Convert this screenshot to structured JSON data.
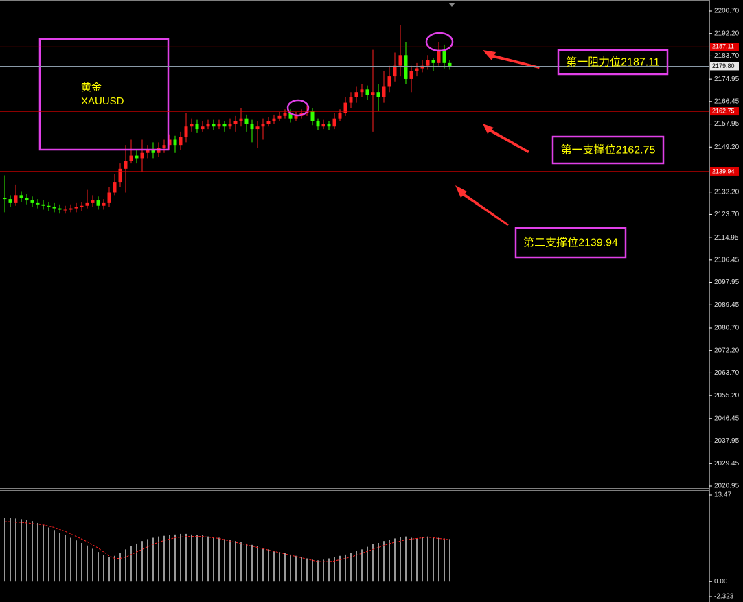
{
  "chart_data": {
    "type": "candlestick",
    "symbol": [
      "黄金",
      "XAUUSD"
    ],
    "open": [
      2130,
      2129.5,
      2128,
      2131,
      2130,
      2129,
      2128,
      2127.5,
      2127,
      2126.5,
      2126,
      2125.5,
      2125.5,
      2126,
      2126.5,
      2127,
      2128,
      2129,
      2127,
      2128,
      2132,
      2136,
      2141,
      2144,
      2146,
      2145,
      2147,
      2148,
      2147,
      2149,
      2150,
      2152,
      2150,
      2153,
      2157,
      2158,
      2156,
      2157,
      2158,
      2157,
      2158,
      2157,
      2158,
      2159,
      2160,
      2158,
      2156,
      2157,
      2158,
      2159,
      2160,
      2161,
      2162,
      2160,
      2161,
      2162,
      2163,
      2159,
      2157,
      2158,
      2157,
      2160,
      2162,
      2166,
      2168,
      2170,
      2171,
      2169,
      2170,
      2168,
      2172,
      2176,
      2180,
      2184,
      2175,
      2178,
      2179,
      2180,
      2182,
      2181,
      2186,
      2181
    ],
    "high": [
      2138.5,
      2131,
      2135,
      2132.5,
      2131.5,
      2130.5,
      2129.5,
      2129,
      2128.5,
      2128,
      2127.5,
      2127,
      2127.5,
      2128,
      2128.5,
      2133,
      2131,
      2130.5,
      2129.5,
      2134,
      2139,
      2143,
      2150,
      2152,
      2148,
      2152,
      2150,
      2151,
      2151,
      2152,
      2154,
      2153.5,
      2155,
      2162,
      2160,
      2159.5,
      2159,
      2159.5,
      2159.5,
      2159.5,
      2159,
      2160,
      2161,
      2164,
      2161.5,
      2159.5,
      2159,
      2160,
      2160.5,
      2161.5,
      2162.5,
      2163.5,
      2163.5,
      2162.5,
      2163.5,
      2165,
      2164,
      2160,
      2159.5,
      2159,
      2162,
      2163.5,
      2168,
      2170,
      2172,
      2173,
      2172.5,
      2186,
      2173,
      2178,
      2180,
      2185,
      2195.5,
      2189,
      2180,
      2181,
      2182,
      2184,
      2183,
      2189,
      2188,
      2182
    ],
    "low": [
      2124.5,
      2126.5,
      2127,
      2128.5,
      2127.5,
      2126.5,
      2126,
      2125.5,
      2125,
      2124.5,
      2124,
      2124,
      2124.5,
      2124.5,
      2125,
      2126,
      2126.5,
      2125.5,
      2125.5,
      2126.5,
      2131,
      2134,
      2132,
      2143,
      2143,
      2140,
      2145,
      2145,
      2145.5,
      2147,
      2148,
      2147,
      2148,
      2151,
      2155,
      2154.5,
      2155,
      2156,
      2155.5,
      2156,
      2155,
      2156,
      2155,
      2157,
      2155,
      2151,
      2149,
      2152,
      2157,
      2158,
      2159,
      2160,
      2158.5,
      2159,
      2160,
      2161,
      2157.5,
      2155.5,
      2156,
      2155.5,
      2156,
      2159,
      2161,
      2164,
      2166,
      2168,
      2167,
      2155,
      2163,
      2166,
      2170,
      2174,
      2176,
      2173,
      2170,
      2176,
      2177.5,
      2178.5,
      2178,
      2180,
      2179,
      2178.5
    ],
    "close": [
      2129.5,
      2128,
      2131,
      2130,
      2129,
      2128,
      2127.5,
      2127,
      2126.5,
      2126,
      2125.5,
      2125.5,
      2126,
      2126.5,
      2127,
      2128,
      2129,
      2127,
      2128,
      2132,
      2136,
      2141,
      2144,
      2146,
      2145,
      2147,
      2148,
      2147,
      2149,
      2150,
      2152,
      2150,
      2153,
      2157,
      2158,
      2156,
      2157,
      2158,
      2157,
      2158,
      2157,
      2158,
      2159,
      2160,
      2158,
      2156,
      2157,
      2158,
      2159,
      2160,
      2161,
      2162,
      2160,
      2161,
      2162,
      2163,
      2159,
      2157,
      2158,
      2157,
      2160,
      2162,
      2166,
      2168,
      2170,
      2171,
      2169,
      2170,
      2168,
      2172,
      2176,
      2180,
      2184,
      2175,
      2178,
      2179,
      2180,
      2182,
      2181,
      2186,
      2181,
      2179.8
    ],
    "up_color": "#ff2020",
    "down_color": "#33ff00",
    "ylim": [
      2020.95,
      2200.7
    ],
    "yticks": [
      {
        "value": 2200.7,
        "label": "2200.70"
      },
      {
        "value": 2192.2,
        "label": "2192.20"
      },
      {
        "value": 2183.7,
        "label": "2183.70"
      },
      {
        "value": 2174.95,
        "label": "2174.95"
      },
      {
        "value": 2166.45,
        "label": "2166.45"
      },
      {
        "value": 2157.95,
        "label": "2157.95"
      },
      {
        "value": 2149.2,
        "label": "2149.20"
      },
      {
        "value": 2132.2,
        "label": "2132.20"
      },
      {
        "value": 2123.7,
        "label": "2123.70"
      },
      {
        "value": 2114.95,
        "label": "2114.95"
      },
      {
        "value": 2106.45,
        "label": "2106.45"
      },
      {
        "value": 2097.95,
        "label": "2097.95"
      },
      {
        "value": 2089.45,
        "label": "2089.45"
      },
      {
        "value": 2080.7,
        "label": "2080.70"
      },
      {
        "value": 2072.2,
        "label": "2072.20"
      },
      {
        "value": 2063.7,
        "label": "2063.70"
      },
      {
        "value": 2055.2,
        "label": "2055.20"
      },
      {
        "value": 2046.45,
        "label": "2046.45"
      },
      {
        "value": 2037.95,
        "label": "2037.95"
      },
      {
        "value": 2029.45,
        "label": "2029.45"
      },
      {
        "value": 2020.95,
        "label": "2020.95"
      }
    ],
    "price_lines": [
      {
        "value": 2187.11,
        "label": "2187.11",
        "color": "#e00000"
      },
      {
        "value": 2179.8,
        "label": "2179.80",
        "color": "#8a9aa8"
      },
      {
        "value": 2162.75,
        "label": "2162.75",
        "color": "#e00000"
      },
      {
        "value": 2139.94,
        "label": "2139.94",
        "color": "#e00000"
      }
    ],
    "annotations": [
      "第一阻力位2187.11",
      "第一支撑位2162.75",
      "第二支撑位2139.94"
    ],
    "indicator": {
      "type": "macd",
      "histogram": [
        9.9,
        9.9,
        9.8,
        9.7,
        9.6,
        9.4,
        9.1,
        8.8,
        8.4,
        8.0,
        7.6,
        7.2,
        6.8,
        6.4,
        6.0,
        5.6,
        5.1,
        4.6,
        4.1,
        3.8,
        4.0,
        4.5,
        5.0,
        5.5,
        5.9,
        6.3,
        6.6,
        6.8,
        7.0,
        7.1,
        7.2,
        7.3,
        7.4,
        7.4,
        7.3,
        7.2,
        7.2,
        7.0,
        6.9,
        6.8,
        6.6,
        6.5,
        6.3,
        6.1,
        5.9,
        5.7,
        5.5,
        5.2,
        5.0,
        4.8,
        4.6,
        4.4,
        4.2,
        4.0,
        3.8,
        3.6,
        3.4,
        3.3,
        3.4,
        3.6,
        3.8,
        4.0,
        4.2,
        4.5,
        4.8,
        5.0,
        5.4,
        5.8,
        6.0,
        6.3,
        6.5,
        6.7,
        6.9,
        7.0,
        6.8,
        6.7,
        6.9,
        7.0,
        6.9,
        6.8,
        6.7,
        6.6
      ],
      "signal": [
        9.3,
        9.3,
        9.2,
        9.2,
        9.1,
        9.0,
        8.9,
        8.8,
        8.6,
        8.4,
        8.1,
        7.8,
        7.4,
        7.0,
        6.6,
        6.2,
        5.7,
        5.2,
        4.6,
        4.0,
        3.6,
        3.6,
        3.8,
        4.2,
        4.6,
        5.0,
        5.4,
        5.8,
        6.1,
        6.4,
        6.6,
        6.8,
        6.9,
        7.0,
        7.0,
        7.0,
        7.0,
        6.9,
        6.8,
        6.7,
        6.5,
        6.3,
        6.1,
        5.9,
        5.7,
        5.5,
        5.3,
        5.1,
        4.9,
        4.7,
        4.5,
        4.3,
        4.1,
        3.9,
        3.7,
        3.5,
        3.3,
        3.1,
        3.1,
        3.1,
        3.2,
        3.4,
        3.6,
        3.8,
        4.1,
        4.4,
        4.7,
        5.0,
        5.3,
        5.6,
        5.9,
        6.1,
        6.3,
        6.5,
        6.6,
        6.7,
        6.8,
        6.9,
        6.8,
        6.7,
        6.6,
        6.5
      ],
      "histogram_color": "#ffffff",
      "signal_color": "#ff2020",
      "ylim": [
        -2.323,
        13.47
      ],
      "yticks": [
        13.47,
        {
          "value": 0,
          "label": "0.00"
        },
        -2.323
      ]
    }
  }
}
